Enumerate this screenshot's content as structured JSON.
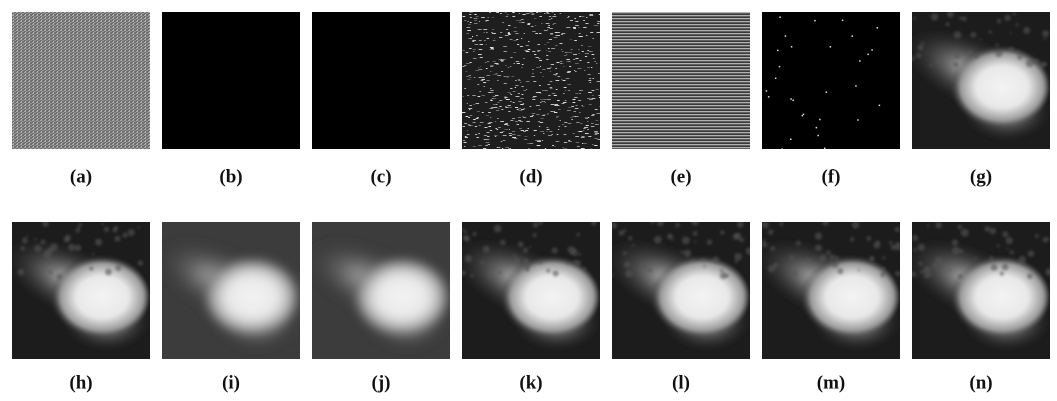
{
  "panels": [
    {
      "label": "(a)"
    },
    {
      "label": "(b)"
    },
    {
      "label": "(c)"
    },
    {
      "label": "(d)"
    },
    {
      "label": "(e)"
    },
    {
      "label": "(f)"
    },
    {
      "label": "(g)"
    },
    {
      "label": "(h)"
    },
    {
      "label": "(i)"
    },
    {
      "label": "(j)"
    },
    {
      "label": "(k)"
    },
    {
      "label": "(l)"
    },
    {
      "label": "(m)"
    },
    {
      "label": "(n)"
    }
  ]
}
